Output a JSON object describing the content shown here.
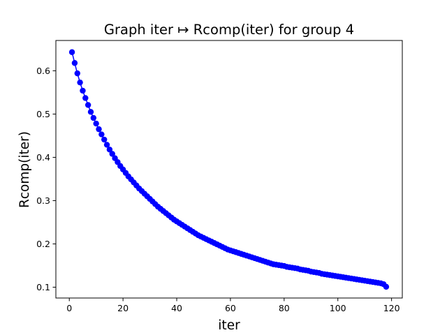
{
  "chart_data": {
    "type": "line",
    "title": "Graph iter ↦ Rcomp(iter) for group 4",
    "xlabel": "iter",
    "ylabel": "Rcomp(iter)",
    "xlim": [
      -5,
      124
    ],
    "ylim": [
      0.075,
      0.67
    ],
    "xticks": [
      0,
      20,
      40,
      60,
      80,
      100,
      120
    ],
    "yticks": [
      0.1,
      0.2,
      0.3,
      0.4,
      0.5,
      0.6
    ],
    "xtick_labels": [
      "0",
      "20",
      "40",
      "60",
      "80",
      "100",
      "120"
    ],
    "ytick_labels": [
      "0.1",
      "0.2",
      "0.3",
      "0.4",
      "0.5",
      "0.6"
    ],
    "grid": false,
    "series": [
      {
        "color": "#0000ff",
        "marker": "circle",
        "x": [
          1,
          2,
          3,
          4,
          5,
          6,
          7,
          8,
          9,
          10,
          11,
          12,
          13,
          14,
          15,
          16,
          17,
          18,
          19,
          20,
          21,
          22,
          23,
          24,
          25,
          26,
          27,
          28,
          29,
          30,
          31,
          32,
          33,
          34,
          35,
          36,
          37,
          38,
          39,
          40,
          41,
          42,
          43,
          44,
          45,
          46,
          47,
          48,
          49,
          50,
          51,
          52,
          53,
          54,
          55,
          56,
          57,
          58,
          59,
          60,
          61,
          62,
          63,
          64,
          65,
          66,
          67,
          68,
          69,
          70,
          71,
          72,
          73,
          74,
          75,
          76,
          77,
          78,
          79,
          80,
          81,
          82,
          83,
          84,
          85,
          86,
          87,
          88,
          89,
          90,
          91,
          92,
          93,
          94,
          95,
          96,
          97,
          98,
          99,
          100,
          101,
          102,
          103,
          104,
          105,
          106,
          107,
          108,
          109,
          110,
          111,
          112,
          113,
          114,
          115,
          116,
          117,
          118
        ],
        "y": [
          0.643,
          0.618,
          0.594,
          0.573,
          0.554,
          0.537,
          0.521,
          0.505,
          0.491,
          0.478,
          0.465,
          0.453,
          0.441,
          0.429,
          0.418,
          0.408,
          0.398,
          0.389,
          0.38,
          0.372,
          0.364,
          0.356,
          0.349,
          0.342,
          0.335,
          0.328,
          0.322,
          0.316,
          0.31,
          0.304,
          0.298,
          0.292,
          0.286,
          0.281,
          0.276,
          0.271,
          0.266,
          0.261,
          0.256,
          0.252,
          0.248,
          0.244,
          0.24,
          0.236,
          0.232,
          0.228,
          0.224,
          0.22,
          0.217,
          0.214,
          0.211,
          0.208,
          0.205,
          0.202,
          0.199,
          0.196,
          0.193,
          0.19,
          0.187,
          0.185,
          0.183,
          0.181,
          0.179,
          0.177,
          0.175,
          0.173,
          0.171,
          0.169,
          0.167,
          0.165,
          0.163,
          0.161,
          0.159,
          0.157,
          0.155,
          0.153,
          0.152,
          0.151,
          0.15,
          0.149,
          0.147,
          0.146,
          0.145,
          0.144,
          0.143,
          0.141,
          0.14,
          0.139,
          0.138,
          0.136,
          0.135,
          0.134,
          0.133,
          0.131,
          0.13,
          0.129,
          0.128,
          0.127,
          0.126,
          0.125,
          0.124,
          0.123,
          0.122,
          0.121,
          0.12,
          0.119,
          0.118,
          0.117,
          0.116,
          0.115,
          0.114,
          0.113,
          0.112,
          0.111,
          0.11,
          0.109,
          0.107,
          0.101
        ]
      }
    ]
  }
}
